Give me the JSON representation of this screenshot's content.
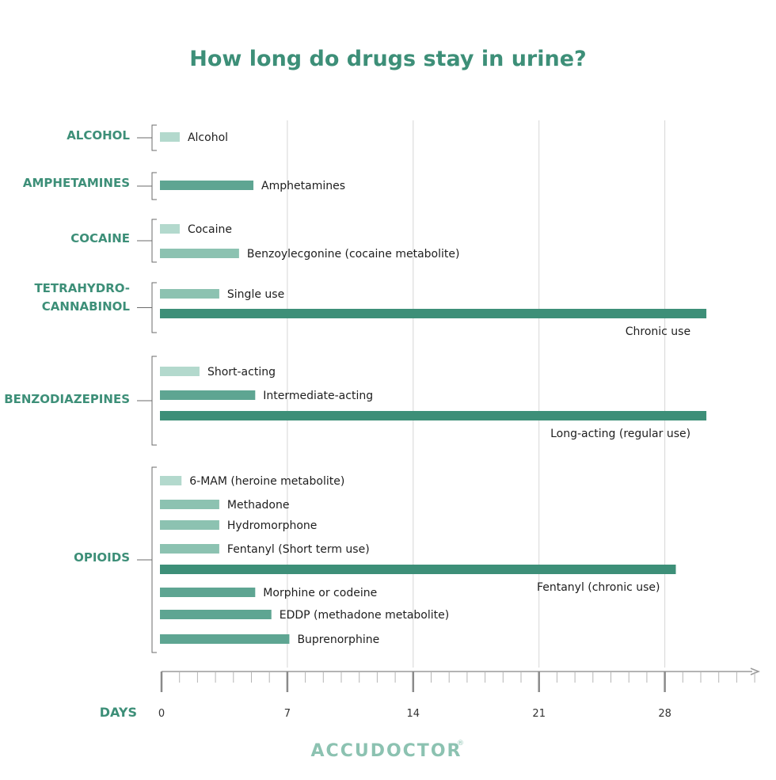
{
  "chart_data": {
    "type": "bar",
    "orientation": "horizontal",
    "title": "How long do drugs stay in urine?",
    "xlabel": "DAYS",
    "x_ticks": [
      0,
      7,
      14,
      21,
      28
    ],
    "xlim": [
      0,
      33
    ],
    "grid": true,
    "units": "days",
    "groups": [
      {
        "label": "ALCOHOL",
        "items": [
          {
            "label": "Alcohol",
            "value": 1.1,
            "color": "#b3d9cd"
          }
        ]
      },
      {
        "label": "AMPHETAMINES",
        "items": [
          {
            "label": "Amphetamines",
            "value": 5.2,
            "color": "#5ea592"
          }
        ]
      },
      {
        "label": "COCAINE",
        "items": [
          {
            "label": "Cocaine",
            "value": 1.1,
            "color": "#b3d9cd"
          },
          {
            "label": "Benzoylecgonine (cocaine metabolite)",
            "value": 4.4,
            "color": "#8cc2b1"
          }
        ]
      },
      {
        "label": "TETRAHYDRO-CANNABINOL",
        "label_lines": [
          "TETRAHYDRO-",
          "CANNABINOL"
        ],
        "items": [
          {
            "label": "Single use",
            "value": 3.3,
            "color": "#8cc2b1"
          },
          {
            "label": "Chronic use",
            "value": 30.4,
            "color": "#3d8f78",
            "label_position": "below-end"
          }
        ]
      },
      {
        "label": "BENZODIAZEPINES",
        "items": [
          {
            "label": "Short-acting",
            "value": 2.2,
            "color": "#b3d9cd"
          },
          {
            "label": "Intermediate-acting",
            "value": 5.3,
            "color": "#5ea592"
          },
          {
            "label": "Long-acting (regular use)",
            "value": 30.4,
            "color": "#3d8f78",
            "label_position": "below-end"
          }
        ]
      },
      {
        "label": "OPIOIDS",
        "items": [
          {
            "label": "6-MAM (heroine metabolite)",
            "value": 1.2,
            "color": "#b3d9cd"
          },
          {
            "label": "Methadone",
            "value": 3.3,
            "color": "#8cc2b1"
          },
          {
            "label": "Hydromorphone",
            "value": 3.3,
            "color": "#8cc2b1"
          },
          {
            "label": "Fentanyl (Short term use)",
            "value": 3.3,
            "color": "#8cc2b1"
          },
          {
            "label": "Fentanyl (chronic use)",
            "value": 28.7,
            "color": "#3d8f78",
            "label_position": "below-end"
          },
          {
            "label": "Morphine or codeine",
            "value": 5.3,
            "color": "#5ea592"
          },
          {
            "label": "EDDP (methadone metabolite)",
            "value": 6.2,
            "color": "#5ea592"
          },
          {
            "label": "Buprenorphine",
            "value": 7.2,
            "color": "#5ea592"
          }
        ]
      }
    ]
  },
  "colors": {
    "title": "#3d8f78",
    "group_label": "#3d8f78",
    "grid": "#d6d6d6",
    "bracket": "#6b6b6b",
    "axis": "#9a9a9a",
    "logo": "#8cc2b1"
  },
  "brand": {
    "logo_text": "ACCUDOCTOR",
    "registered_mark": "®"
  }
}
